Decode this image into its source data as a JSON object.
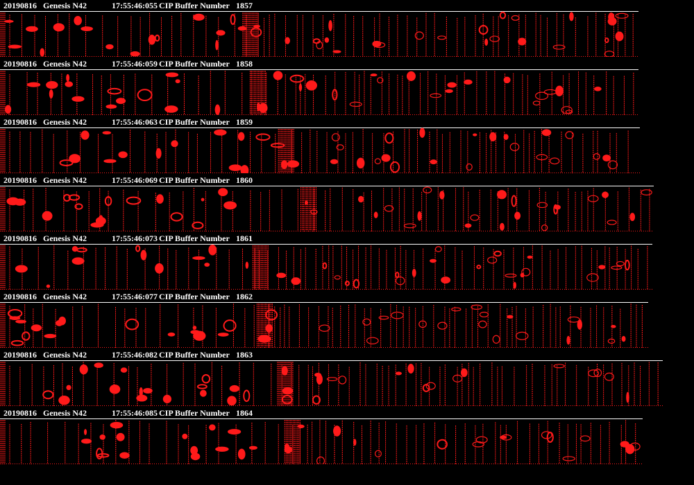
{
  "colors": {
    "background": "#000000",
    "text": "#ffffff",
    "separator": "#ffffff",
    "particle": "#ff1a1a"
  },
  "buffers": [
    {
      "date": "20190816",
      "probe": "Genesis N42",
      "time": "17:55:46:055",
      "label": "CIP Buffer Number",
      "number": "1857"
    },
    {
      "date": "20190816",
      "probe": "Genesis N42",
      "time": "17:55:46:059",
      "label": "CIP Buffer Number",
      "number": "1858"
    },
    {
      "date": "20190816",
      "probe": "Genesis N42",
      "time": "17:55:46:063",
      "label": "CIP Buffer Number",
      "number": "1859"
    },
    {
      "date": "20190816",
      "probe": "Genesis N42",
      "time": "17:55:46:069",
      "label": "CIP Buffer Number",
      "number": "1860"
    },
    {
      "date": "20190816",
      "probe": "Genesis N42",
      "time": "17:55:46:073",
      "label": "CIP Buffer Number",
      "number": "1861"
    },
    {
      "date": "20190816",
      "probe": "Genesis N42",
      "time": "17:55:46:077",
      "label": "CIP Buffer Number",
      "number": "1862"
    },
    {
      "date": "20190816",
      "probe": "Genesis N42",
      "time": "17:55:46:082",
      "label": "CIP Buffer Number",
      "number": "1863"
    },
    {
      "date": "20190816",
      "probe": "Genesis N42",
      "time": "17:55:46:085",
      "label": "CIP Buffer Number",
      "number": "1864"
    }
  ]
}
